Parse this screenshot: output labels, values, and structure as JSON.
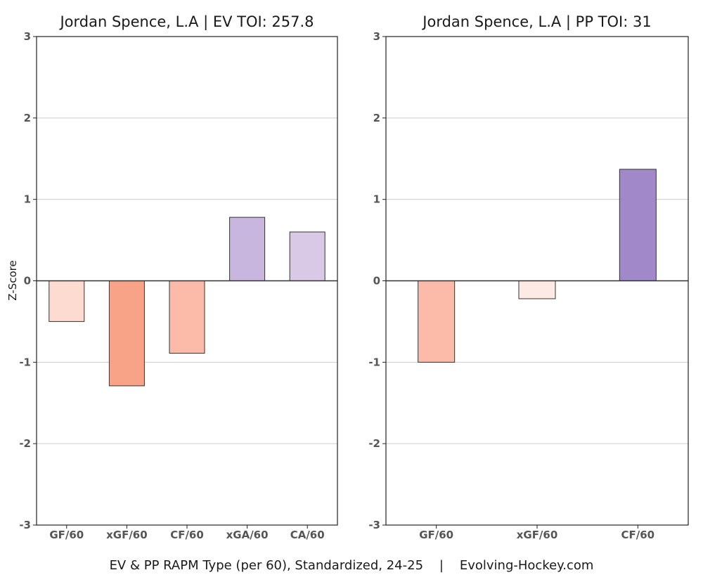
{
  "footer": "EV & PP RAPM Type (per 60), Standardized, 24-25    |    Evolving-Hockey.com",
  "colors": {
    "neg_light": "#fddbd0",
    "neg_mid": "#fcbba8",
    "neg_strong": "#f8a287",
    "neg_faint": "#feeae4",
    "pos_light": "#d9c9e6",
    "pos_mid": "#c8b6df",
    "pos_strong": "#a088c9",
    "grid": "#cccccc",
    "axis": "#222222"
  },
  "chart_data": [
    {
      "type": "bar",
      "title": "Jordan Spence, L.A  |  EV TOI: 257.8",
      "ylabel": "Z-Score",
      "xlabel": "",
      "ylim": [
        -3,
        3
      ],
      "yticks": [
        -3,
        -2,
        -1,
        0,
        1,
        2,
        3
      ],
      "grid": true,
      "categories": [
        "GF/60",
        "xGF/60",
        "CF/60",
        "xGA/60",
        "CA/60"
      ],
      "values": [
        -0.5,
        -1.29,
        -0.89,
        0.78,
        0.6
      ],
      "bar_colors": [
        "#fddbd0",
        "#f8a287",
        "#fcbba8",
        "#c8b6df",
        "#d9c9e6"
      ]
    },
    {
      "type": "bar",
      "title": "Jordan Spence, L.A  |  PP TOI: 31",
      "ylabel": "",
      "xlabel": "",
      "ylim": [
        -3,
        3
      ],
      "yticks": [
        -3,
        -2,
        -1,
        0,
        1,
        2,
        3
      ],
      "grid": true,
      "categories": [
        "GF/60",
        "xGF/60",
        "CF/60"
      ],
      "values": [
        -1.0,
        -0.22,
        1.37
      ],
      "bar_colors": [
        "#fcbba8",
        "#feeae4",
        "#a088c9"
      ]
    }
  ]
}
